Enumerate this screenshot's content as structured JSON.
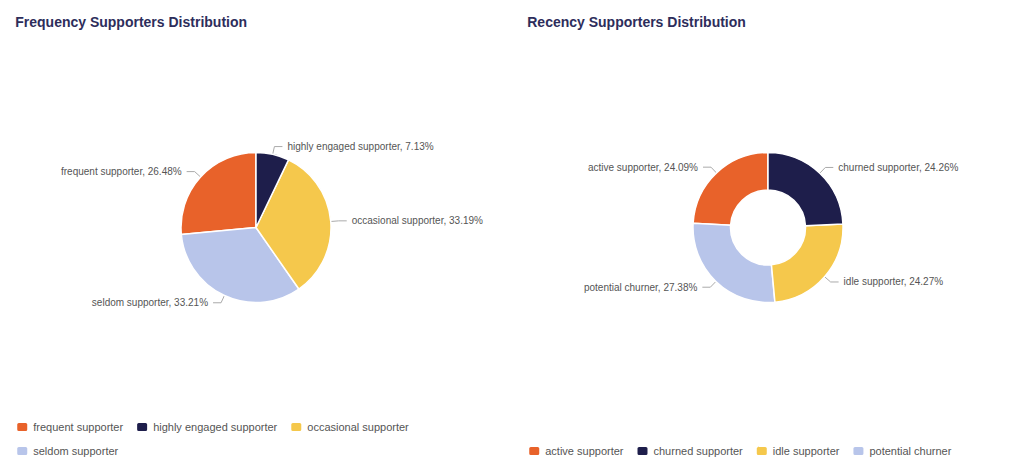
{
  "chart_data": [
    {
      "type": "pie",
      "title": "Frequency Supporters Distribution",
      "categories": [
        "frequent supporter",
        "seldom supporter",
        "occasional supporter",
        "highly engaged supporter"
      ],
      "values": [
        26.48,
        33.21,
        33.19,
        7.13
      ],
      "value_labels": [
        "frequent supporter, 26.48%",
        "seldom supporter, 33.21%",
        "occasional supporter, 33.19%",
        "highly engaged supporter, 7.13%"
      ],
      "colors": [
        "#e8622a",
        "#b8c5ea",
        "#f5c84c",
        "#1e1e4b"
      ],
      "data_labels": true,
      "legend": "bottom"
    },
    {
      "type": "donut",
      "title": "Recency Supporters Distribution",
      "categories": [
        "active supporter",
        "potential churner",
        "idle supporter",
        "churned supporter"
      ],
      "values": [
        24.09,
        27.38,
        24.27,
        24.26
      ],
      "value_labels": [
        "active supporter, 24.09%",
        "potential churner, 27.38%",
        "idle supporter, 24.27%",
        "churned supporter, 24.26%"
      ],
      "colors": [
        "#e8622a",
        "#b8c5ea",
        "#f5c84c",
        "#1e1e4b"
      ],
      "data_labels": true,
      "legend": "bottom"
    }
  ]
}
